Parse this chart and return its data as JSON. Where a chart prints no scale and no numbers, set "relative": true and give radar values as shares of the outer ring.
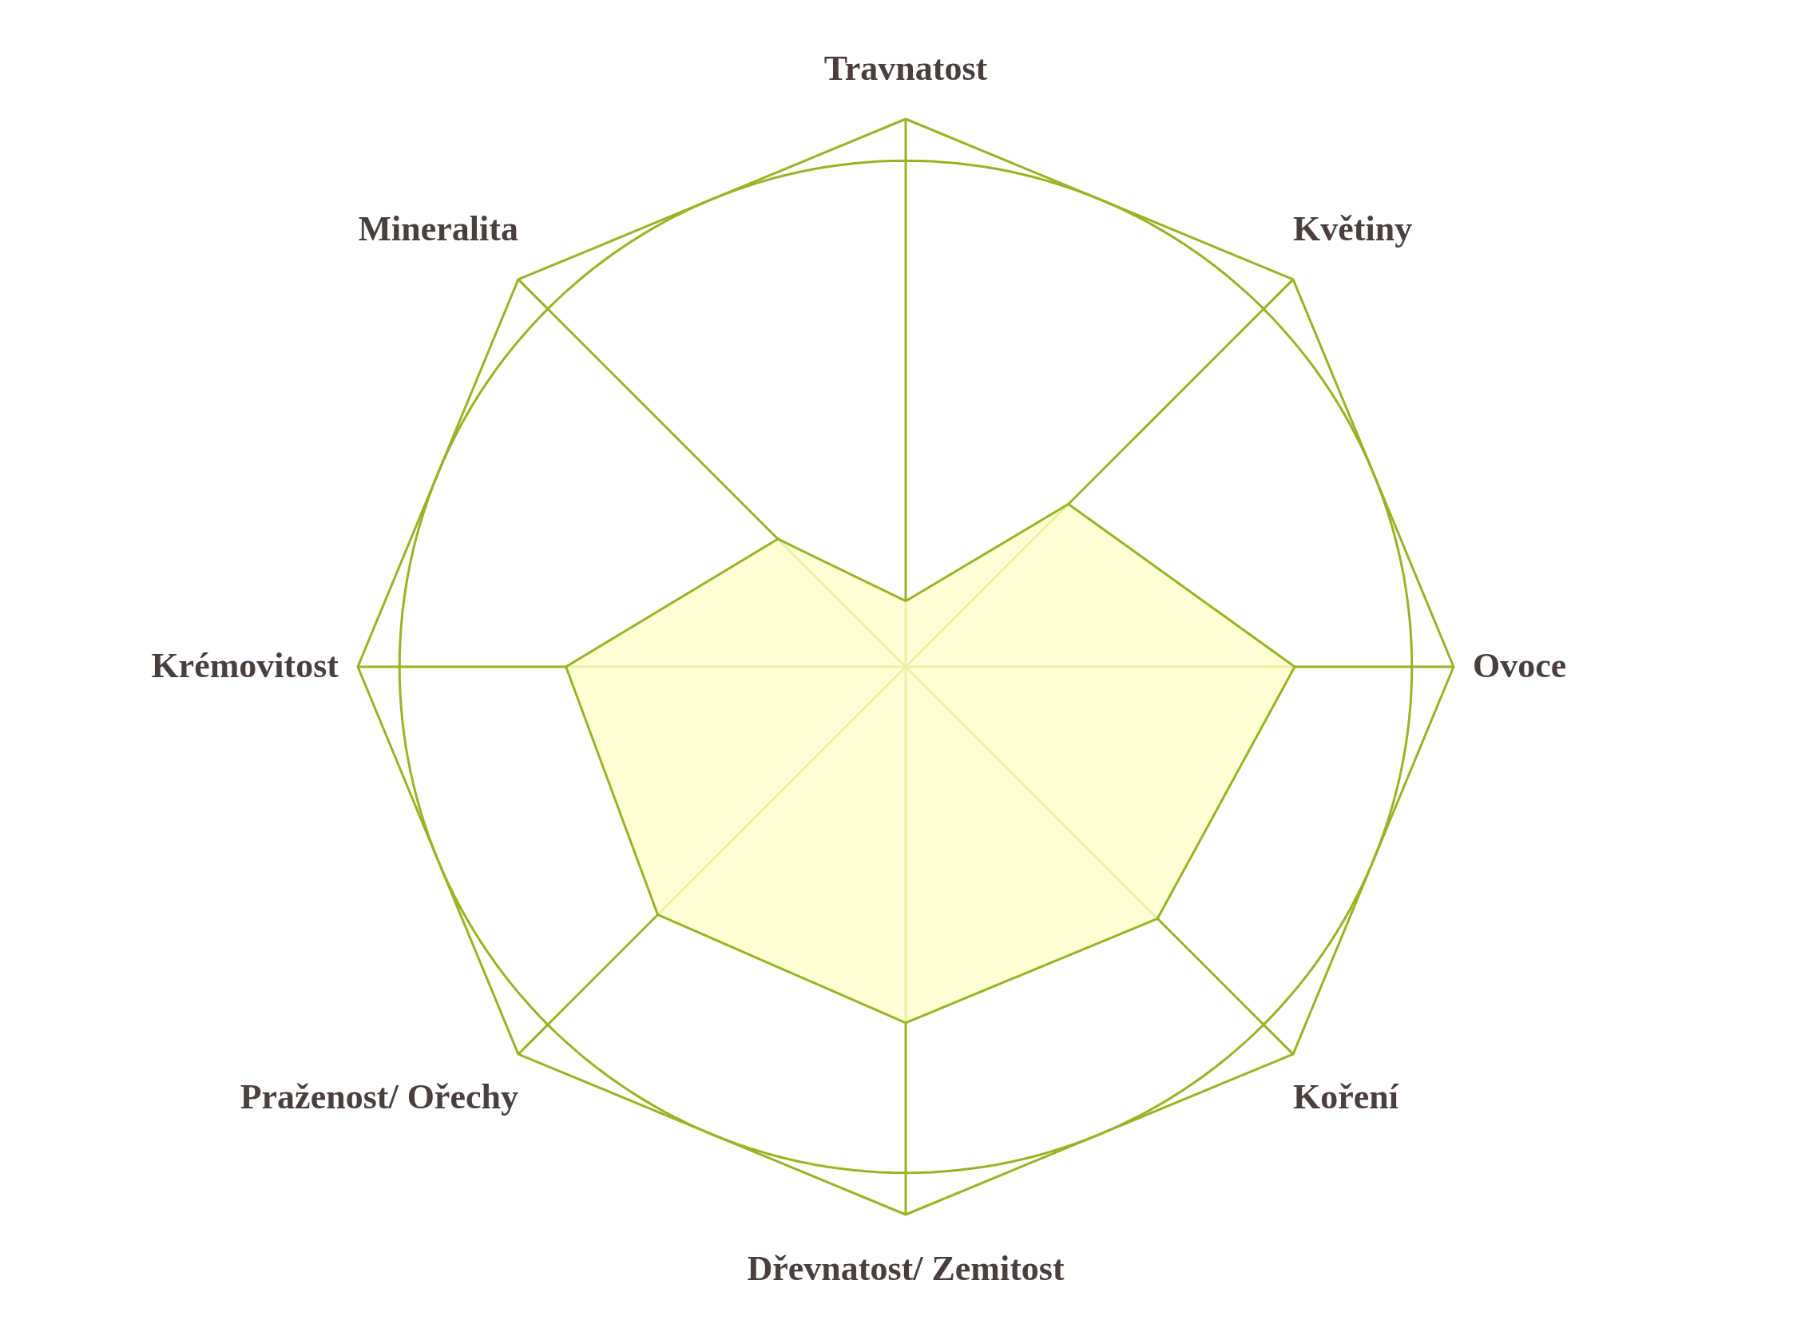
{
  "chart_data": {
    "type": "radar",
    "relative": true,
    "categories": [
      "Travnatost",
      "Květiny",
      "Ovoce",
      "Koření",
      "Dřevnatost/ Zemitost",
      "Praženost/ Ořechy",
      "Krémovitost",
      "Mineralita"
    ],
    "series": [
      {
        "color": "#98b424",
        "values": [
          0.12,
          0.42,
          0.71,
          0.65,
          0.65,
          0.64,
          0.62,
          0.33
        ]
      }
    ]
  }
}
